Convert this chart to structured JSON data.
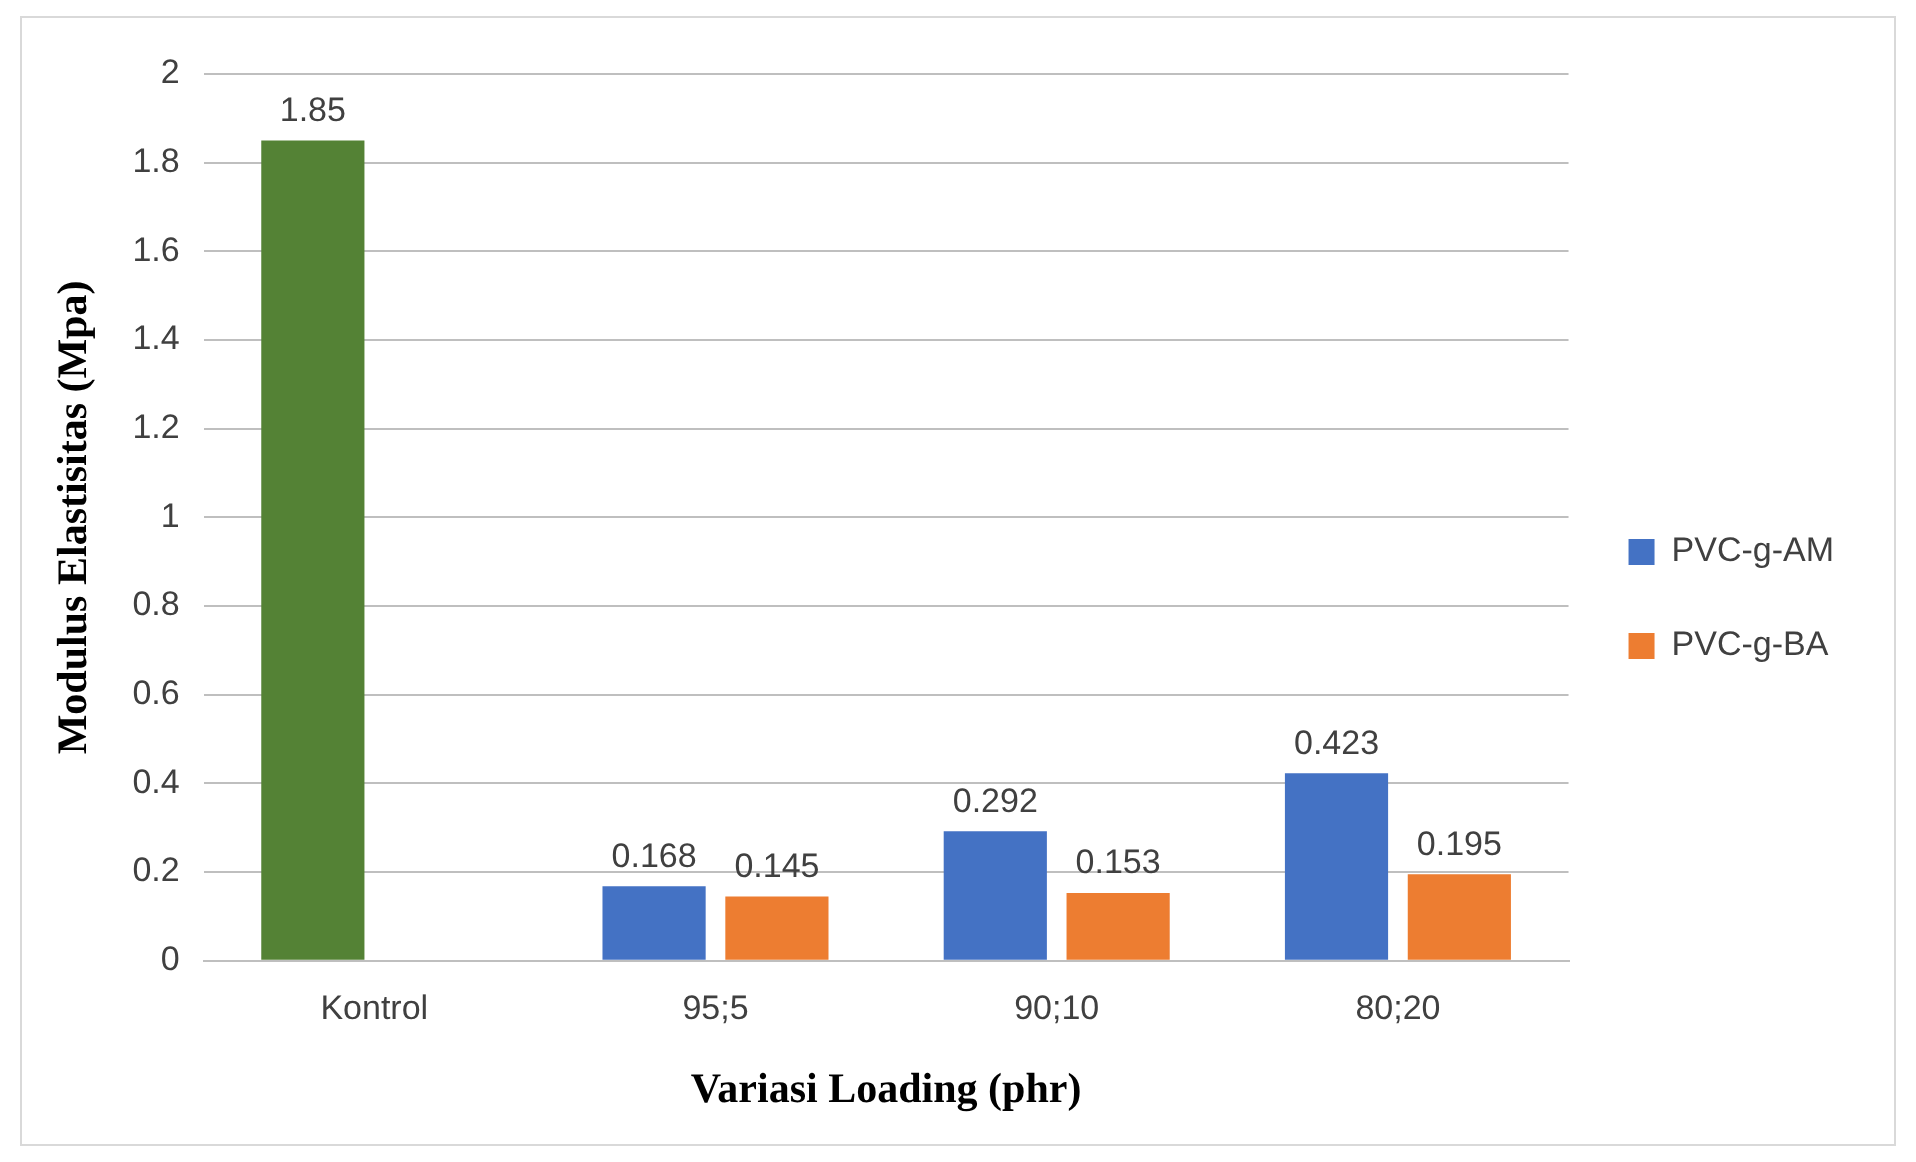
{
  "chart_data": {
    "type": "bar",
    "xlabel": "Variasi Loading (phr)",
    "ylabel": "Modulus Elastisitas (Mpa)",
    "categories": [
      "Kontrol",
      "95;5",
      "90;10",
      "80;20"
    ],
    "series": [
      {
        "name": "PVC-g-AM",
        "color": "#4472c4",
        "colors": [
          "#548235",
          "#4472c4",
          "#4472c4",
          "#4472c4"
        ],
        "values": [
          1.85,
          0.168,
          0.292,
          0.423
        ]
      },
      {
        "name": "PVC-g-BA",
        "color": "#ed7d31",
        "values": [
          null,
          0.145,
          0.153,
          0.195
        ]
      }
    ],
    "ylim": [
      0,
      2
    ],
    "yticks": [
      0,
      0.2,
      0.4,
      0.6,
      0.8,
      1,
      1.2,
      1.4,
      1.6,
      1.8,
      2
    ],
    "grid": "y",
    "legend": "right",
    "data_labels": true
  }
}
